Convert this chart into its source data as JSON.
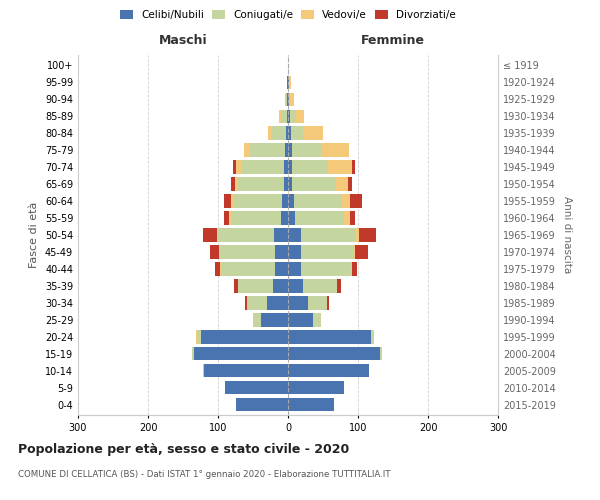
{
  "age_groups": [
    "0-4",
    "5-9",
    "10-14",
    "15-19",
    "20-24",
    "25-29",
    "30-34",
    "35-39",
    "40-44",
    "45-49",
    "50-54",
    "55-59",
    "60-64",
    "65-69",
    "70-74",
    "75-79",
    "80-84",
    "85-89",
    "90-94",
    "95-99",
    "100+"
  ],
  "birth_years": [
    "2015-2019",
    "2010-2014",
    "2005-2009",
    "2000-2004",
    "1995-1999",
    "1990-1994",
    "1985-1989",
    "1980-1984",
    "1975-1979",
    "1970-1974",
    "1965-1969",
    "1960-1964",
    "1955-1959",
    "1950-1954",
    "1945-1949",
    "1940-1944",
    "1935-1939",
    "1930-1934",
    "1925-1929",
    "1920-1924",
    "≤ 1919"
  ],
  "male_celibi": [
    75,
    90,
    120,
    135,
    125,
    38,
    30,
    22,
    18,
    18,
    20,
    10,
    8,
    6,
    6,
    5,
    3,
    2,
    1,
    1,
    0
  ],
  "male_coniugati": [
    0,
    0,
    1,
    2,
    5,
    12,
    28,
    50,
    78,
    80,
    80,
    72,
    70,
    65,
    60,
    50,
    20,
    8,
    2,
    1,
    0
  ],
  "male_vedovi": [
    0,
    0,
    0,
    0,
    2,
    0,
    0,
    0,
    1,
    1,
    2,
    2,
    3,
    5,
    8,
    8,
    5,
    3,
    1,
    0,
    0
  ],
  "male_divorziati": [
    0,
    0,
    0,
    0,
    0,
    0,
    3,
    5,
    8,
    12,
    20,
    8,
    10,
    5,
    5,
    0,
    0,
    0,
    0,
    0,
    0
  ],
  "female_celibi": [
    65,
    80,
    115,
    132,
    118,
    35,
    28,
    22,
    18,
    18,
    18,
    10,
    8,
    6,
    5,
    5,
    4,
    3,
    1,
    1,
    0
  ],
  "female_coniugati": [
    0,
    0,
    1,
    2,
    5,
    12,
    28,
    48,
    72,
    76,
    78,
    70,
    68,
    62,
    52,
    42,
    18,
    8,
    2,
    1,
    0
  ],
  "female_vedovi": [
    0,
    0,
    0,
    0,
    0,
    0,
    0,
    0,
    1,
    2,
    5,
    8,
    12,
    18,
    35,
    40,
    28,
    12,
    5,
    2,
    0
  ],
  "female_divorziati": [
    0,
    0,
    0,
    0,
    0,
    0,
    3,
    5,
    8,
    18,
    25,
    8,
    18,
    5,
    3,
    0,
    0,
    0,
    0,
    0,
    0
  ],
  "colors": {
    "celibi": "#4a74b0",
    "coniugati": "#c5d5a0",
    "vedovi": "#f5c97a",
    "divorziati": "#c0392b"
  },
  "title": "Popolazione per età, sesso e stato civile - 2020",
  "subtitle": "COMUNE DI CELLATICA (BS) - Dati ISTAT 1° gennaio 2020 - Elaborazione TUTTITALIA.IT",
  "xlabel_left": "Maschi",
  "xlabel_right": "Femmine",
  "ylabel_left": "Fasce di età",
  "ylabel_right": "Anni di nascita",
  "xlim": 300,
  "background_color": "#ffffff",
  "grid_color": "#cccccc"
}
